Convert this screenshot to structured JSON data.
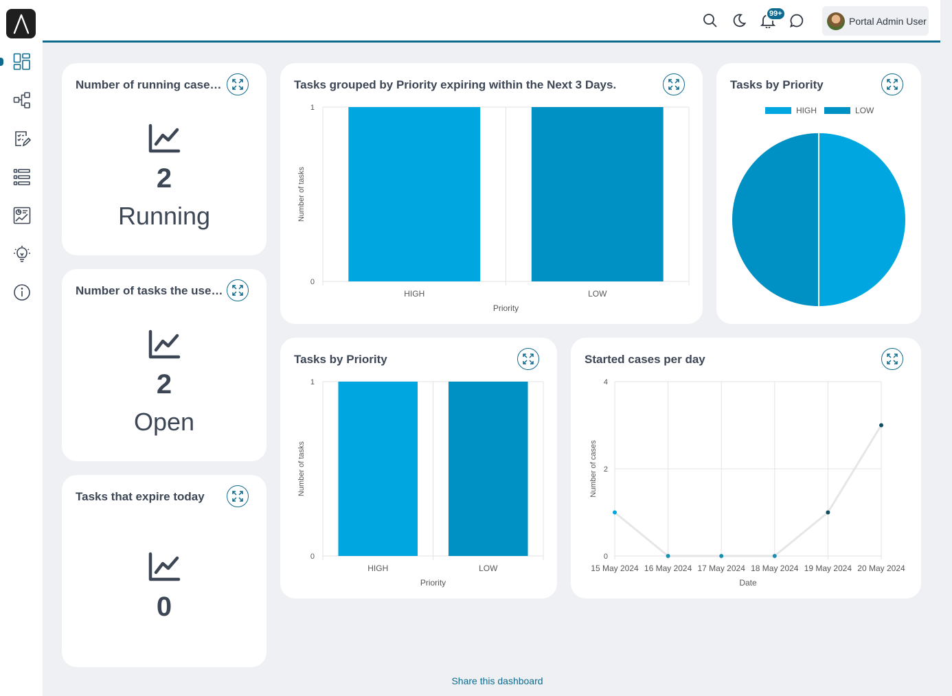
{
  "header": {
    "notification_badge": "99+",
    "user_name": "Portal Admin User"
  },
  "sidebar": {
    "items": [
      {
        "icon": "dashboard-icon"
      },
      {
        "icon": "process-icon"
      },
      {
        "icon": "tasks-icon"
      },
      {
        "icon": "cases-list-icon"
      },
      {
        "icon": "statistics-icon"
      },
      {
        "icon": "ideas-icon"
      },
      {
        "icon": "info-icon"
      }
    ]
  },
  "widgets": {
    "running_cases": {
      "title": "Number of running cases ...",
      "value": "2",
      "label": "Running"
    },
    "user_tasks": {
      "title": "Number of tasks the user ...",
      "value": "2",
      "label": "Open"
    },
    "expire_today": {
      "title": "Tasks that expire today",
      "value": "0"
    },
    "priority_expiring": {
      "title": "Tasks grouped by Priority expiring within the Next 3 Days."
    },
    "priority_pie": {
      "title": "Tasks by Priority"
    },
    "priority_bar": {
      "title": "Tasks by Priority"
    },
    "started_cases": {
      "title": "Started cases per day"
    }
  },
  "footer": {
    "share_link": "Share this dashboard"
  },
  "colors": {
    "accent": "#0e6a8e",
    "high": "#00a6df",
    "low": "#0091c4"
  },
  "chart_data": [
    {
      "id": "priority_expiring",
      "type": "bar",
      "categories": [
        "HIGH",
        "LOW"
      ],
      "values": [
        1,
        1
      ],
      "xlabel": "Priority",
      "ylabel": "Number of tasks",
      "ylim": [
        0,
        1
      ],
      "yticks": [
        "0",
        "1"
      ],
      "colors": [
        "#00a6df",
        "#0091c4"
      ]
    },
    {
      "id": "priority_pie",
      "type": "pie",
      "categories": [
        "HIGH",
        "LOW"
      ],
      "values": [
        1,
        1
      ],
      "legend": "top",
      "colors": [
        "#00a6df",
        "#0091c4"
      ]
    },
    {
      "id": "priority_bar",
      "type": "bar",
      "categories": [
        "HIGH",
        "LOW"
      ],
      "values": [
        1,
        1
      ],
      "xlabel": "Priority",
      "ylabel": "Number of tasks",
      "ylim": [
        0,
        1
      ],
      "yticks": [
        "0",
        "1"
      ],
      "colors": [
        "#00a6df",
        "#0091c4"
      ]
    },
    {
      "id": "started_cases",
      "type": "line",
      "x": [
        "15 May 2024",
        "16 May 2024",
        "17 May 2024",
        "18 May 2024",
        "19 May 2024",
        "20 May 2024"
      ],
      "values": [
        1,
        0,
        0,
        0,
        1,
        3
      ],
      "xlabel": "Date",
      "ylabel": "Number of cases",
      "ylim": [
        0,
        4
      ],
      "yticks": [
        "0",
        "2",
        "4"
      ],
      "grid": true
    }
  ]
}
